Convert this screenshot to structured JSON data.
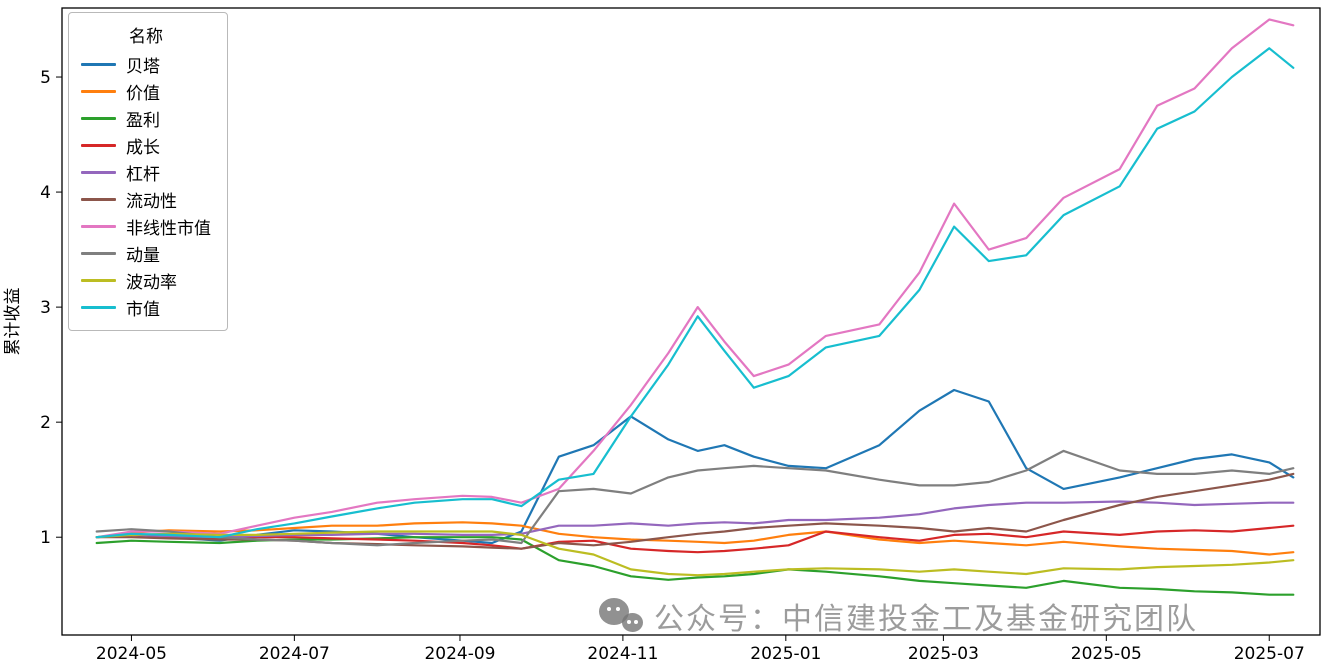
{
  "figure": {
    "background": "#ffffff"
  },
  "watermark": {
    "text": "公众号：中信建投金工及基金研究团队",
    "icon": "wechat-logo",
    "color": "#808080"
  },
  "chart_data": {
    "type": "line",
    "title": "",
    "xlabel": "",
    "ylabel": "累计收益",
    "legend_title": "名称",
    "legend_position": "upper left",
    "grid": false,
    "xlim": [
      "2024-04-05",
      "2025-07-20"
    ],
    "ylim": [
      0.15,
      5.6
    ],
    "yticks": [
      1,
      2,
      3,
      4,
      5
    ],
    "xticks": [
      {
        "date": "2024-05-01",
        "label": "2024-05"
      },
      {
        "date": "2024-07-01",
        "label": "2024-07"
      },
      {
        "date": "2024-09-01",
        "label": "2024-09"
      },
      {
        "date": "2024-11-01",
        "label": "2024-11"
      },
      {
        "date": "2025-01-01",
        "label": "2025-01"
      },
      {
        "date": "2025-03-01",
        "label": "2025-03"
      },
      {
        "date": "2025-05-01",
        "label": "2025-05"
      },
      {
        "date": "2025-07-01",
        "label": "2025-07"
      }
    ],
    "x_dates": [
      "2024-04-18",
      "2024-05-01",
      "2024-05-15",
      "2024-06-03",
      "2024-06-17",
      "2024-07-01",
      "2024-07-15",
      "2024-08-01",
      "2024-08-15",
      "2024-09-02",
      "2024-09-13",
      "2024-09-24",
      "2024-10-08",
      "2024-10-21",
      "2024-11-04",
      "2024-11-18",
      "2024-11-29",
      "2024-12-09",
      "2024-12-20",
      "2025-01-02",
      "2025-01-16",
      "2025-02-05",
      "2025-02-20",
      "2025-03-05",
      "2025-03-18",
      "2025-04-01",
      "2025-04-15",
      "2025-05-06",
      "2025-05-20",
      "2025-06-03",
      "2025-06-17",
      "2025-07-01",
      "2025-07-10"
    ],
    "series": [
      {
        "name": "贝塔",
        "color": "#1f77b4",
        "values": [
          1.0,
          1.03,
          1.0,
          0.97,
          1.02,
          1.06,
          1.05,
          1.03,
          1.0,
          0.97,
          0.95,
          1.05,
          1.7,
          1.8,
          2.05,
          1.85,
          1.75,
          1.8,
          1.7,
          1.62,
          1.6,
          1.8,
          2.1,
          2.28,
          2.18,
          1.6,
          1.42,
          1.52,
          1.6,
          1.68,
          1.72,
          1.65,
          1.52
        ]
      },
      {
        "name": "价值",
        "color": "#ff7f0e",
        "values": [
          1.0,
          1.04,
          1.06,
          1.05,
          1.06,
          1.08,
          1.1,
          1.1,
          1.12,
          1.13,
          1.12,
          1.1,
          1.03,
          1.0,
          0.98,
          0.97,
          0.96,
          0.95,
          0.97,
          1.02,
          1.05,
          0.98,
          0.95,
          0.97,
          0.95,
          0.93,
          0.96,
          0.92,
          0.9,
          0.89,
          0.88,
          0.85,
          0.87
        ]
      },
      {
        "name": "盈利",
        "color": "#2ca02c",
        "values": [
          0.95,
          0.97,
          0.96,
          0.95,
          0.97,
          0.98,
          0.98,
          0.99,
          1.0,
          1.0,
          1.0,
          0.98,
          0.8,
          0.75,
          0.66,
          0.63,
          0.65,
          0.66,
          0.68,
          0.72,
          0.7,
          0.66,
          0.62,
          0.6,
          0.58,
          0.56,
          0.62,
          0.56,
          0.55,
          0.53,
          0.52,
          0.5,
          0.5
        ]
      },
      {
        "name": "成长",
        "color": "#d62728",
        "values": [
          1.0,
          1.02,
          1.0,
          0.99,
          1.0,
          1.0,
          0.99,
          0.98,
          0.97,
          0.95,
          0.93,
          0.9,
          0.96,
          0.97,
          0.9,
          0.88,
          0.87,
          0.88,
          0.9,
          0.93,
          1.05,
          1.0,
          0.97,
          1.02,
          1.03,
          1.0,
          1.05,
          1.02,
          1.05,
          1.06,
          1.05,
          1.08,
          1.1
        ]
      },
      {
        "name": "杠杆",
        "color": "#9467bd",
        "values": [
          1.0,
          1.02,
          1.01,
          1.0,
          1.01,
          1.02,
          1.02,
          1.03,
          1.03,
          1.02,
          1.02,
          1.03,
          1.1,
          1.1,
          1.12,
          1.1,
          1.12,
          1.13,
          1.12,
          1.15,
          1.15,
          1.17,
          1.2,
          1.25,
          1.28,
          1.3,
          1.3,
          1.31,
          1.3,
          1.28,
          1.29,
          1.3,
          1.3
        ]
      },
      {
        "name": "流动性",
        "color": "#8c564b",
        "values": [
          1.0,
          1.0,
          0.99,
          0.98,
          0.98,
          0.97,
          0.95,
          0.94,
          0.93,
          0.92,
          0.91,
          0.9,
          0.95,
          0.93,
          0.96,
          1.0,
          1.03,
          1.05,
          1.08,
          1.1,
          1.12,
          1.1,
          1.08,
          1.05,
          1.08,
          1.05,
          1.15,
          1.28,
          1.35,
          1.4,
          1.45,
          1.5,
          1.55
        ]
      },
      {
        "name": "非线性市值",
        "color": "#e377c2",
        "values": [
          1.0,
          1.05,
          1.05,
          1.03,
          1.1,
          1.17,
          1.22,
          1.3,
          1.33,
          1.36,
          1.35,
          1.3,
          1.42,
          1.75,
          2.15,
          2.6,
          3.0,
          2.7,
          2.4,
          2.5,
          2.75,
          2.85,
          3.3,
          3.9,
          3.5,
          3.6,
          3.95,
          4.2,
          4.75,
          4.9,
          5.25,
          5.5,
          5.45
        ]
      },
      {
        "name": "动量",
        "color": "#7f7f7f",
        "values": [
          1.05,
          1.07,
          1.05,
          1.0,
          0.98,
          0.97,
          0.95,
          0.93,
          0.95,
          0.97,
          0.98,
          0.95,
          1.4,
          1.42,
          1.38,
          1.52,
          1.58,
          1.6,
          1.62,
          1.6,
          1.58,
          1.5,
          1.45,
          1.45,
          1.48,
          1.58,
          1.75,
          1.58,
          1.55,
          1.55,
          1.58,
          1.55,
          1.6
        ]
      },
      {
        "name": "波动率",
        "color": "#bcbd22",
        "values": [
          1.0,
          1.02,
          1.03,
          1.02,
          1.02,
          1.03,
          1.04,
          1.05,
          1.05,
          1.05,
          1.05,
          1.02,
          0.9,
          0.85,
          0.72,
          0.68,
          0.67,
          0.68,
          0.7,
          0.72,
          0.73,
          0.72,
          0.7,
          0.72,
          0.7,
          0.68,
          0.73,
          0.72,
          0.74,
          0.75,
          0.76,
          0.78,
          0.8
        ]
      },
      {
        "name": "市值",
        "color": "#17becf",
        "values": [
          1.0,
          1.03,
          1.02,
          1.0,
          1.07,
          1.12,
          1.18,
          1.25,
          1.3,
          1.33,
          1.33,
          1.27,
          1.5,
          1.55,
          2.05,
          2.5,
          2.92,
          2.62,
          2.3,
          2.4,
          2.65,
          2.75,
          3.15,
          3.7,
          3.4,
          3.45,
          3.8,
          4.05,
          4.55,
          4.7,
          5.0,
          5.25,
          5.08
        ]
      }
    ]
  }
}
